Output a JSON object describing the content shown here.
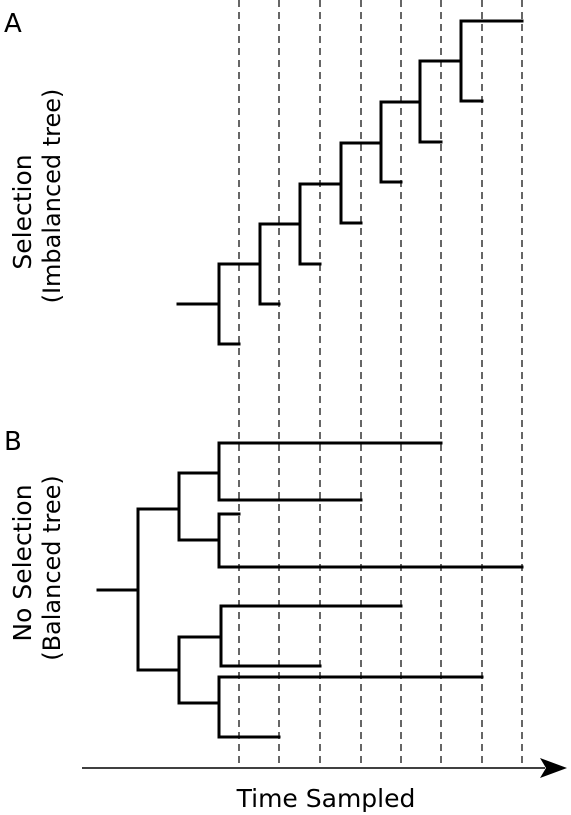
{
  "panel_a": {
    "letter": "A",
    "label_line1": "Selection",
    "label_line2": "(Imbalanced tree)"
  },
  "panel_b": {
    "letter": "B",
    "label_line1": "No Selection",
    "label_line2": "(Balanced tree)"
  },
  "axis": {
    "label": "Time Sampled"
  },
  "sampling_times": 8
}
